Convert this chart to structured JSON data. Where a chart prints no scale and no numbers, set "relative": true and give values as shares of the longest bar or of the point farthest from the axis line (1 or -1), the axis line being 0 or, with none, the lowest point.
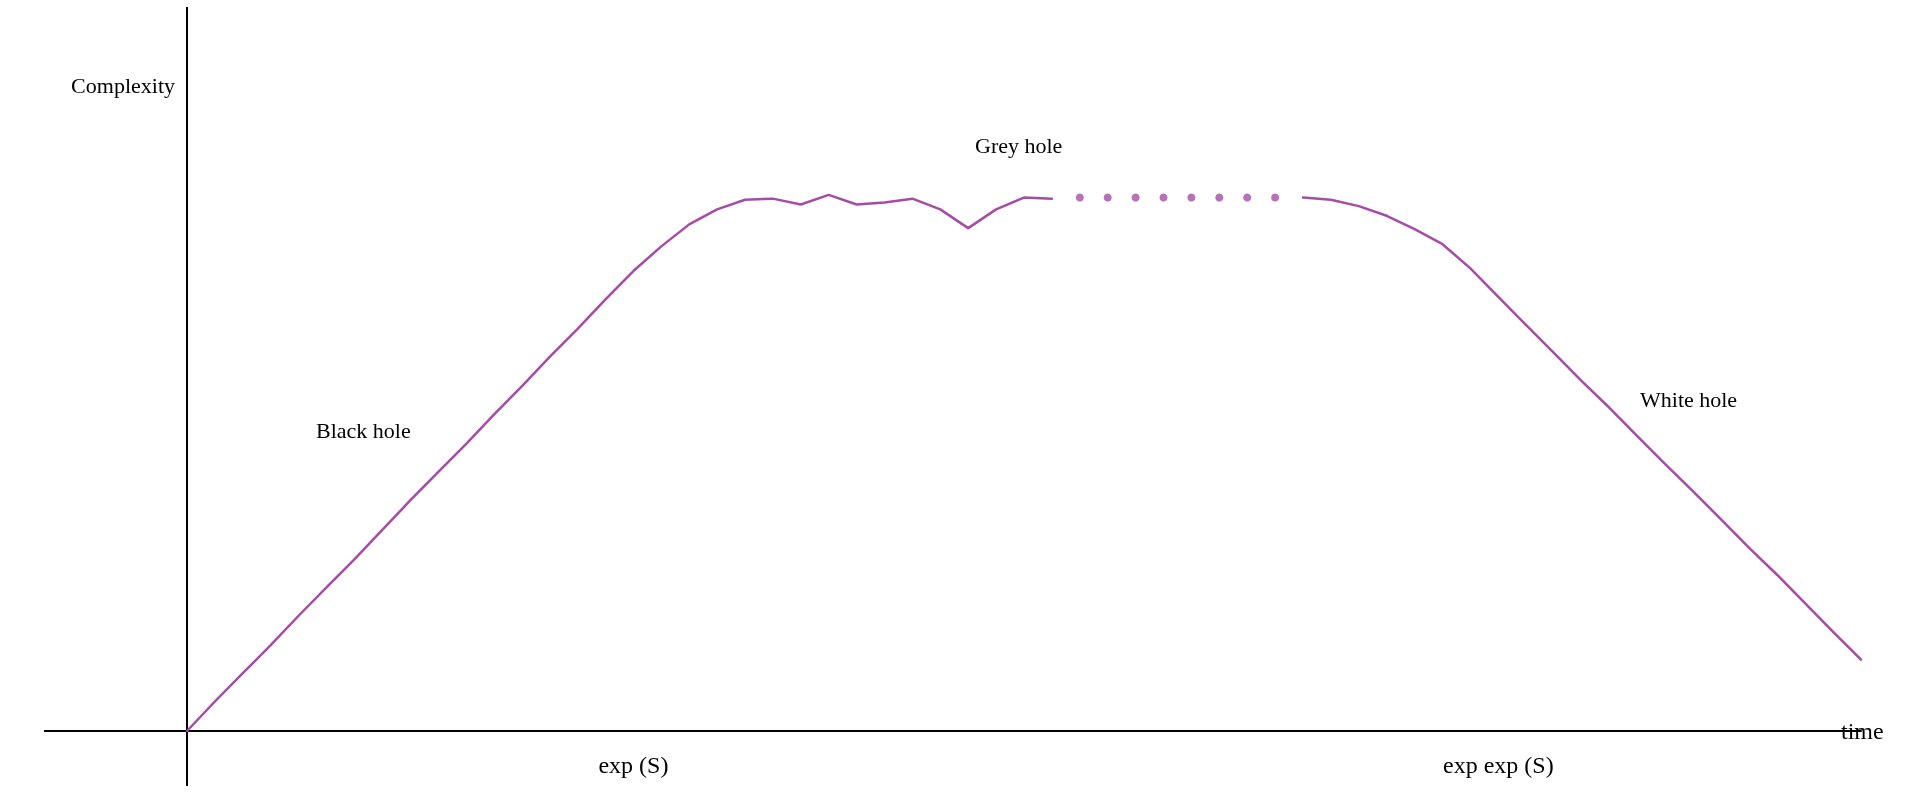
{
  "chart_data": {
    "type": "line",
    "relative": true,
    "xlabel": "time",
    "ylabel": "Complexity",
    "categories": [
      null,
      null,
      null,
      null,
      null,
      null,
      null,
      null,
      null,
      null,
      null,
      null,
      null,
      null,
      null,
      null,
      "exp (S)",
      null,
      null,
      null,
      null,
      null,
      null,
      null,
      null,
      null,
      null,
      null,
      null,
      null,
      null,
      null,
      null,
      null,
      null,
      null,
      null,
      null,
      null,
      null,
      null,
      null,
      null,
      null,
      null,
      null,
      null,
      "exp exp (S)",
      null,
      null,
      null,
      null,
      null,
      null,
      null,
      null,
      null,
      null,
      null,
      null,
      null
    ],
    "series": [
      {
        "color": "#a64ca6",
        "line_style": "solid",
        "values": [
          0,
          0.055,
          0.108,
          0.16,
          0.215,
          0.268,
          0.32,
          0.375,
          0.43,
          0.483,
          0.535,
          0.59,
          0.643,
          0.698,
          0.75,
          0.805,
          0.858,
          0.904,
          0.945,
          0.973,
          0.991,
          0.993,
          0.982,
          1,
          0.982,
          0.986,
          0.993,
          0.973,
          0.938,
          0.973,
          0.995,
          0.993,
          null,
          null,
          null,
          null,
          null,
          null,
          null,
          null,
          0.995,
          0.991,
          0.979,
          0.961,
          0.936,
          0.908,
          0.863,
          0.81,
          0.757,
          0.705,
          0.652,
          0.602,
          0.549,
          0.497,
          0.446,
          0.394,
          0.341,
          0.291,
          0.238,
          0.185,
          0.133
        ]
      },
      {
        "type": "scatter",
        "marker": "circle",
        "color": "#a64ca6",
        "values": [
          null,
          null,
          null,
          null,
          null,
          null,
          null,
          null,
          null,
          null,
          null,
          null,
          null,
          null,
          null,
          null,
          null,
          null,
          null,
          null,
          null,
          null,
          null,
          null,
          null,
          null,
          null,
          null,
          null,
          null,
          null,
          null,
          0.995,
          0.995,
          0.995,
          0.995,
          0.995,
          0.995,
          0.995,
          0.995,
          null,
          null,
          null,
          null,
          null,
          null,
          null,
          null,
          null,
          null,
          null,
          null,
          null,
          null,
          null,
          null,
          null,
          null,
          null,
          null,
          null
        ]
      }
    ],
    "annotations": [
      "Black hole",
      "Grey hole",
      "White hole"
    ],
    "grid": false,
    "marker": "none"
  }
}
